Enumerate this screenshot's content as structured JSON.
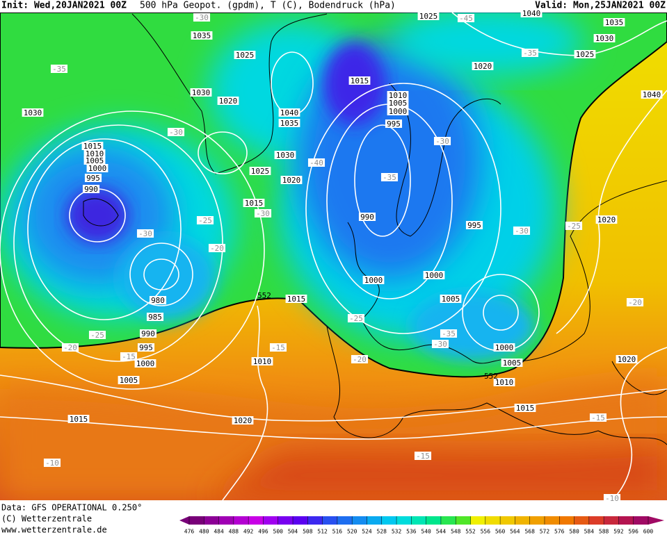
{
  "header": {
    "init": "Init: Wed,20JAN2021 00Z",
    "title": "500 hPa Geopot. (gpdm), T (C), Bodendruck (hPa)",
    "valid": "Valid: Mon,25JAN2021 00Z"
  },
  "footer": {
    "source": "Data: GFS OPERATIONAL 0.250°",
    "copyright": "(C) Wetterzentrale",
    "url": "www.wetterzentrale.de"
  },
  "map": {
    "isobar_labels": [
      1035,
      1025,
      1030,
      1020,
      1030,
      1040,
      1035,
      1030,
      1025,
      1020,
      1015,
      1015,
      1010,
      1005,
      1000,
      995,
      990,
      1015,
      1010,
      1005,
      1000,
      995,
      990,
      1000,
      1000,
      1005,
      995,
      980,
      985,
      990,
      995,
      1000,
      1005,
      1015,
      1020,
      1010,
      1015,
      1000,
      1005,
      1010,
      1015,
      1020,
      1020,
      1025,
      1030,
      1035,
      1040,
      1020,
      1025,
      1040
    ],
    "temperature_labels": [
      -30,
      -35,
      -30,
      -40,
      -35,
      -30,
      -30,
      -25,
      -30,
      -20,
      -30,
      -25,
      -25,
      -35,
      -30,
      -25,
      -20,
      -15,
      -15,
      -20,
      -20,
      -15,
      -15,
      -10,
      -10,
      -45,
      -35
    ],
    "geopotential_labels": [
      552,
      552
    ]
  },
  "colorbar": {
    "ticks": [
      476,
      480,
      484,
      488,
      492,
      496,
      500,
      504,
      508,
      512,
      516,
      520,
      524,
      528,
      532,
      536,
      540,
      544,
      548,
      552,
      556,
      560,
      564,
      568,
      572,
      576,
      580,
      584,
      588,
      592,
      596,
      600
    ],
    "colors": [
      "#780078",
      "#8c0096",
      "#a000b4",
      "#b400d2",
      "#c800e6",
      "#a000f0",
      "#7800f0",
      "#5a00f0",
      "#3c28f0",
      "#2850f0",
      "#1e6ef0",
      "#148cf0",
      "#0aaaf0",
      "#00c8f0",
      "#00dcdc",
      "#00e6b4",
      "#00e68c",
      "#28e650",
      "#50e628",
      "#f0f000",
      "#f0dc00",
      "#f0c800",
      "#f0b400",
      "#f0a000",
      "#f08c00",
      "#f07800",
      "#e65a14",
      "#dc3c28",
      "#c8283c",
      "#b41450",
      "#a00a64"
    ]
  }
}
